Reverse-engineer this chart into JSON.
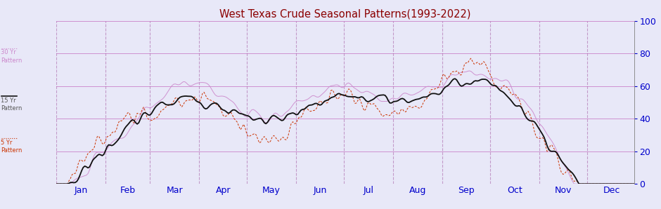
{
  "title": "West Texas Crude Seasonal Patterns(1993-2022)",
  "title_color": "#8B0000",
  "bg_color": "#E8E8F8",
  "plot_bg_color": "#E8E8F8",
  "axis_color": "#0000CC",
  "hline_color": "#CC88CC",
  "vline_color": "#AA66AA",
  "months": [
    "Jan",
    "Feb",
    "Mar",
    "Apr",
    "May",
    "Jun",
    "Jul",
    "Aug",
    "Sep",
    "Oct",
    "Nov",
    "Dec"
  ],
  "ylim": [
    0,
    100
  ],
  "yticks": [
    0,
    20,
    40,
    60,
    80,
    100
  ],
  "color_30yr": "#CC88CC",
  "color_15yr": "#111111",
  "color_5yr": "#CC3300",
  "month_starts": [
    0,
    31,
    59,
    90,
    120,
    151,
    181,
    212,
    243,
    273,
    304,
    334
  ]
}
